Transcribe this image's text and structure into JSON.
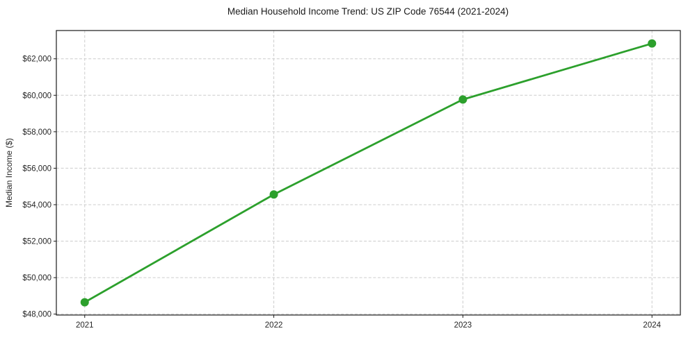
{
  "figure": {
    "title": "Median Household Income Trend: US ZIP Code 76544 (2021-2024)"
  },
  "chart_data": {
    "type": "line",
    "title": "Median Household Income Trend: US ZIP Code 76544 (2021-2024)",
    "xlabel": "",
    "ylabel": "Median Income ($)",
    "x": [
      2021,
      2022,
      2023,
      2024
    ],
    "x_tick_labels": [
      "2021",
      "2022",
      "2023",
      "2024"
    ],
    "series": [
      {
        "name": "Median Household Income",
        "values": [
          48650,
          54560,
          59770,
          62840
        ]
      }
    ],
    "y_ticks": [
      48000,
      50000,
      52000,
      54000,
      56000,
      58000,
      60000,
      62000
    ],
    "y_tick_labels": [
      "$48,000",
      "$50,000",
      "$52,000",
      "$54,000",
      "$56,000",
      "$58,000",
      "$60,000",
      "$62,000"
    ],
    "ylim": [
      47950,
      63550
    ],
    "xlim": [
      2020.85,
      2024.15
    ],
    "grid": true,
    "grid_style": "dashed",
    "legend": "none",
    "styles": {
      "line_color": "#2ca02c",
      "line_width": 2.8,
      "marker": "circle",
      "marker_radius": 6,
      "grid_color": "#cccccc",
      "spine_color": "#1a1a1a",
      "tick_color": "#1a1a1a",
      "tick_label_color": "#262626",
      "background": "#ffffff"
    }
  }
}
